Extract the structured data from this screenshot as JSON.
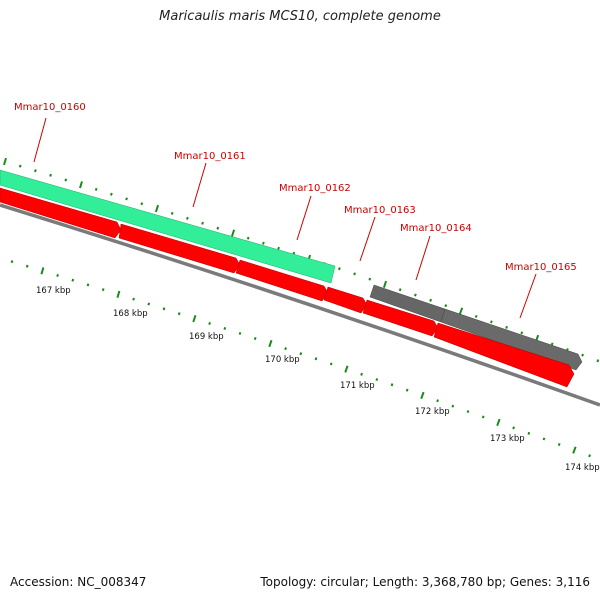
{
  "title": "Maricaulis maris MCS10, complete genome",
  "accession": "Accession: NC_008347",
  "summary": "Topology: circular; Length: 3,368,780 bp; Genes: 3,116",
  "colors": {
    "cds_forward_highlight": "#33ee99",
    "cds_reverse": "#ff0000",
    "cds_forward_grey": "#666666",
    "backbone": "#7a7a7a",
    "tick": "#1a8a1a",
    "gene_label": "#cc0000"
  },
  "gene_labels": [
    "Mmar10_0160",
    "Mmar10_0161",
    "Mmar10_0162",
    "Mmar10_0163",
    "Mmar10_0164",
    "Mmar10_0165"
  ],
  "kbp_labels": [
    "167 kbp",
    "168 kbp",
    "169 kbp",
    "170 kbp",
    "171 kbp",
    "172 kbp",
    "173 kbp",
    "174 kbp"
  ]
}
